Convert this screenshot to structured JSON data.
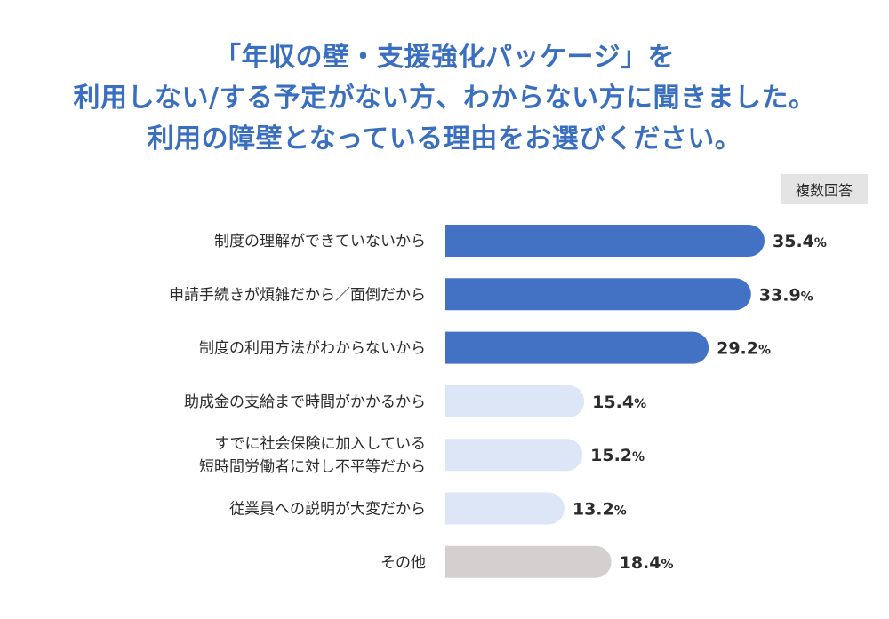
{
  "header": {
    "title_lines": [
      "「年収の壁・支援強化パッケージ」を",
      "利用しない/する予定がない方、わからない方に聞きました。",
      "利用の障壁となっている理由をお選びください。"
    ],
    "badge": "複数回答"
  },
  "colors": {
    "title": "#3a6fbf",
    "bar_dark": "#4371c4",
    "bar_light": "#dce6f6",
    "bar_other": "#d4d0cf"
  },
  "chart_data": {
    "type": "bar",
    "orientation": "horizontal",
    "categories": [
      [
        "制度の理解ができていないから"
      ],
      [
        "申請手続きが煩雑だから／面倒だから"
      ],
      [
        "制度の利用方法がわからないから"
      ],
      [
        "助成金の支給まで時間がかかるから"
      ],
      [
        "すでに社会保険に加入している",
        "短時間労働者に対し不平等だから"
      ],
      [
        "従業員への説明が大変だから"
      ],
      [
        "その他"
      ]
    ],
    "values": [
      35.4,
      33.9,
      29.2,
      15.4,
      15.2,
      13.2,
      18.4
    ],
    "value_suffix": "%",
    "bar_styles": [
      "dark",
      "dark",
      "dark",
      "light",
      "light",
      "light",
      "other"
    ],
    "xlim": [
      0,
      40
    ],
    "grid": false,
    "legend": "none"
  }
}
